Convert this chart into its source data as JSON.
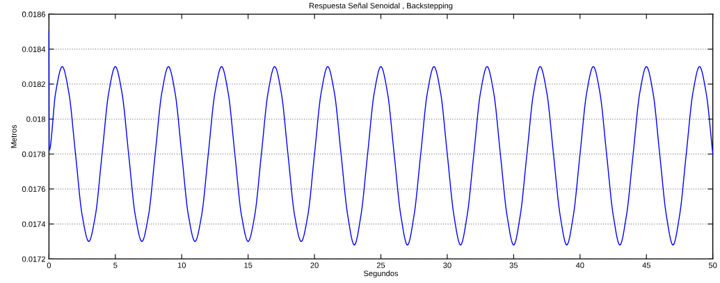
{
  "chart_data": {
    "type": "line",
    "title": "Respuesta Señal Senoidal , Backstepping",
    "xlabel": "Segundos",
    "ylabel": "Metros",
    "xlim": [
      0,
      50
    ],
    "xticks": [
      0,
      5,
      10,
      15,
      20,
      25,
      30,
      35,
      40,
      45,
      50
    ],
    "ylim": [
      0.0172,
      0.0186
    ],
    "yticks": [
      0.0172,
      0.0174,
      0.0176,
      0.0178,
      0.018,
      0.0182,
      0.0184,
      0.0186
    ],
    "grid": "y",
    "marker": "none",
    "line_style": "solid",
    "series": [
      {
        "color": "#0000ff",
        "x": [
          0,
          0.02,
          0.5,
          1,
          1.5,
          2,
          2.5,
          3,
          3.5,
          4,
          4.5,
          5,
          5.5,
          6,
          6.5,
          7,
          7.5,
          8,
          8.5,
          9,
          9.5,
          10,
          10.5,
          11,
          11.5,
          12,
          12.5,
          13,
          13.5,
          14,
          14.5,
          15,
          15.5,
          16,
          16.5,
          17,
          17.5,
          18,
          18.5,
          19,
          19.5,
          20,
          20.5,
          21,
          21.5,
          22,
          22.5,
          23,
          23.5,
          24,
          24.5,
          25,
          25.5,
          26,
          26.5,
          27,
          27.5,
          28,
          28.5,
          29,
          29.5,
          30,
          30.5,
          31,
          31.5,
          32,
          32.5,
          33,
          33.5,
          34,
          34.5,
          35,
          35.5,
          36,
          36.5,
          37,
          37.5,
          38,
          38.5,
          39,
          39.5,
          40,
          40.5,
          41,
          41.5,
          42,
          42.5,
          43,
          43.5,
          44,
          44.5,
          45,
          45.5,
          46,
          46.5,
          47,
          47.5,
          48,
          48.5,
          49,
          49.5,
          50
        ],
        "values": [
          0.0185,
          0.01782,
          0.01815,
          0.0183,
          0.01815,
          0.0178,
          0.01745,
          0.0173,
          0.01745,
          0.0178,
          0.01815,
          0.0183,
          0.01815,
          0.0178,
          0.01745,
          0.0173,
          0.01745,
          0.0178,
          0.01815,
          0.0183,
          0.01815,
          0.0178,
          0.01745,
          0.0173,
          0.01745,
          0.0178,
          0.01815,
          0.0183,
          0.01815,
          0.0178,
          0.01745,
          0.0173,
          0.01745,
          0.0178,
          0.01815,
          0.0183,
          0.01815,
          0.0178,
          0.01745,
          0.0173,
          0.01745,
          0.0178,
          0.01815,
          0.0183,
          0.01815,
          0.0178,
          0.01745,
          0.01728,
          0.01745,
          0.0178,
          0.01815,
          0.0183,
          0.01815,
          0.0178,
          0.01745,
          0.01728,
          0.01745,
          0.0178,
          0.01815,
          0.0183,
          0.01815,
          0.0178,
          0.01745,
          0.01728,
          0.01745,
          0.0178,
          0.01815,
          0.0183,
          0.01815,
          0.0178,
          0.01745,
          0.01728,
          0.01745,
          0.0178,
          0.01815,
          0.0183,
          0.01815,
          0.0178,
          0.01745,
          0.01728,
          0.01745,
          0.0178,
          0.01815,
          0.0183,
          0.01815,
          0.0178,
          0.01745,
          0.01728,
          0.01745,
          0.0178,
          0.01815,
          0.0183,
          0.01815,
          0.0178,
          0.01745,
          0.01728,
          0.01745,
          0.0178,
          0.01815,
          0.0183,
          0.01815,
          0.0178
        ]
      }
    ]
  }
}
